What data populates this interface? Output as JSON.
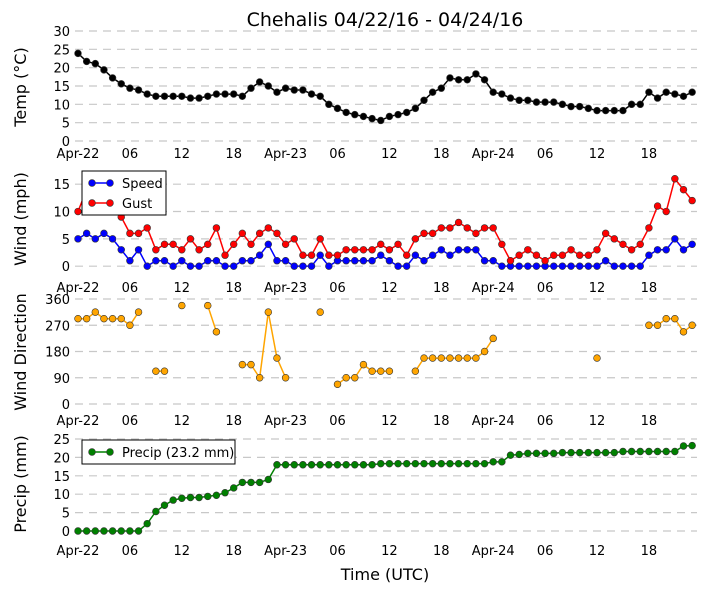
{
  "chart_data": {
    "title": "Chehalis 04/22/16 - 04/24/16",
    "xlabel": "Time (UTC)",
    "x_tick_labels": [
      "Apr-22",
      "06",
      "12",
      "18",
      "Apr-23",
      "06",
      "12",
      "18",
      "Apr-24",
      "06",
      "12",
      "18"
    ],
    "x_hours": "hourly, 0 to 71 from Apr-22 00:00",
    "grid": "horizontal dashed",
    "panels": [
      {
        "type": "line",
        "ylabel": "Temp (°C)",
        "ylim": [
          0,
          30
        ],
        "yticks": [
          0,
          5,
          10,
          15,
          20,
          25,
          30
        ],
        "series": [
          {
            "color": "#000000",
            "values": [
              23.9,
              21.7,
              21.1,
              19.4,
              17.2,
              15.6,
              14.4,
              13.9,
              12.8,
              12.2,
              12.2,
              12.2,
              12.2,
              11.7,
              11.7,
              12.2,
              12.8,
              12.8,
              12.8,
              12.2,
              14.4,
              16.1,
              15.0,
              13.3,
              14.4,
              13.9,
              13.9,
              12.8,
              12.2,
              10.0,
              8.9,
              7.8,
              7.2,
              6.7,
              6.1,
              5.6,
              6.7,
              7.2,
              7.8,
              8.9,
              11.1,
              13.3,
              14.4,
              17.2,
              16.7,
              16.7,
              18.3,
              16.7,
              13.3,
              12.8,
              11.7,
              11.1,
              11.1,
              10.6,
              10.6,
              10.6,
              10.0,
              9.4,
              9.4,
              8.9,
              8.3,
              8.3,
              8.3,
              8.3,
              10.0,
              10.0,
              13.3,
              11.7,
              13.3,
              12.8,
              12.2,
              13.3
            ]
          }
        ]
      },
      {
        "type": "line",
        "ylabel": "Wind (mph)",
        "ylim": [
          -1.8,
          17.6
        ],
        "yticks": [
          0,
          5,
          10,
          15
        ],
        "legend": "top-left",
        "series": [
          {
            "name": "Speed",
            "color": "#0000ff",
            "values": [
              5,
              6,
              5,
              6,
              5,
              3,
              1,
              3,
              0,
              1,
              1,
              0,
              1,
              0,
              0,
              1,
              1,
              0,
              0,
              1,
              1,
              2,
              4,
              1,
              1,
              0,
              0,
              0,
              2,
              0,
              1,
              1,
              1,
              1,
              1,
              2,
              1,
              0,
              0,
              2,
              1,
              2,
              3,
              2,
              3,
              3,
              3,
              1,
              1,
              0,
              0,
              0,
              0,
              0,
              0,
              0,
              0,
              0,
              0,
              0,
              0,
              1,
              0,
              0,
              0,
              0,
              2,
              3,
              3,
              5,
              3,
              4
            ]
          },
          {
            "name": "Gust",
            "color": "#ff0000",
            "values": [
              10,
              14,
              13,
              12,
              11,
              9,
              6,
              6,
              7,
              3,
              4,
              4,
              3,
              5,
              3,
              4,
              7,
              2,
              4,
              6,
              4,
              6,
              7,
              6,
              4,
              5,
              2,
              2,
              5,
              2,
              2,
              3,
              3,
              3,
              3,
              4,
              3,
              4,
              2,
              5,
              6,
              6,
              7,
              7,
              8,
              7,
              6,
              7,
              7,
              4,
              1,
              2,
              3,
              2,
              1,
              2,
              2,
              3,
              2,
              2,
              3,
              6,
              5,
              4,
              3,
              4,
              7,
              11,
              10,
              16,
              14,
              12
            ]
          }
        ]
      },
      {
        "type": "line",
        "ylabel": "Wind Direction",
        "ylim": [
          0,
          360
        ],
        "yticks": [
          0,
          90,
          180,
          270,
          360
        ],
        "series": [
          {
            "color": "#ffa500",
            "values": [
              292.5,
              292.5,
              315,
              292.5,
              292.5,
              292.5,
              270,
              315,
              null,
              112.5,
              112.5,
              null,
              337.5,
              null,
              null,
              337.5,
              247.5,
              null,
              null,
              135,
              135,
              90,
              315,
              157.5,
              90,
              null,
              null,
              null,
              315,
              null,
              67.5,
              90,
              90,
              135,
              112.5,
              112.5,
              112.5,
              null,
              null,
              112.5,
              157.5,
              157.5,
              157.5,
              157.5,
              157.5,
              157.5,
              157.5,
              180,
              225,
              null,
              null,
              null,
              null,
              null,
              null,
              null,
              null,
              null,
              null,
              null,
              157.5,
              null,
              null,
              null,
              null,
              null,
              270,
              270,
              292.5,
              292.5,
              247.5,
              270
            ]
          }
        ]
      },
      {
        "type": "line",
        "ylabel": "Precip (mm)",
        "ylim": [
          0,
          25
        ],
        "yticks": [
          0,
          5,
          10,
          15,
          20,
          25
        ],
        "legend": "top-left",
        "series": [
          {
            "name": "Precip (23.2 mm)",
            "color": "#008000",
            "values": [
              0,
              0,
              0,
              0,
              0,
              0,
              0,
              0,
              2.0,
              5.3,
              7.0,
              8.4,
              8.9,
              9.1,
              9.1,
              9.4,
              9.7,
              10.4,
              11.7,
              13.2,
              13.2,
              13.2,
              14.0,
              18.0,
              18.0,
              18.0,
              18.0,
              18.0,
              18.0,
              18.0,
              18.0,
              18.0,
              18.0,
              18.0,
              18.0,
              18.3,
              18.3,
              18.3,
              18.3,
              18.3,
              18.3,
              18.3,
              18.3,
              18.3,
              18.3,
              18.3,
              18.3,
              18.3,
              18.8,
              18.8,
              20.6,
              20.8,
              21.1,
              21.1,
              21.1,
              21.1,
              21.3,
              21.3,
              21.3,
              21.3,
              21.3,
              21.3,
              21.3,
              21.6,
              21.6,
              21.6,
              21.6,
              21.6,
              21.6,
              21.6,
              23.1,
              23.2
            ]
          }
        ]
      }
    ]
  }
}
